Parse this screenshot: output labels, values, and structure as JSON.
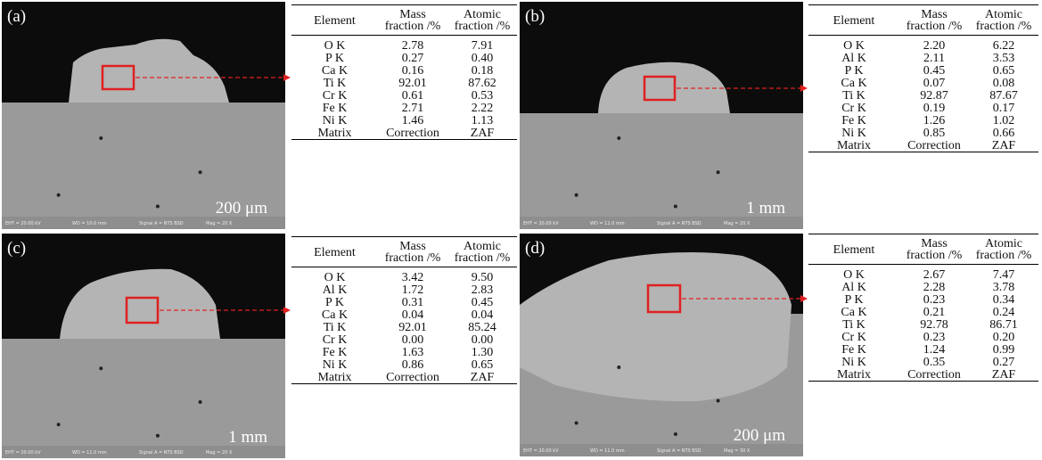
{
  "panels": [
    {
      "label": "(a)",
      "scale": "200 μm",
      "info": [
        "EHT = 20.00 kV",
        "WD = 10.0 mm",
        "Signal A = NTS BSD",
        "Mag = 20 X"
      ],
      "table": {
        "headers": [
          "Element",
          "Mass fraction /%",
          "Atomic fraction /%"
        ],
        "rows": [
          [
            "O K",
            "2.78",
            "7.91"
          ],
          [
            "P K",
            "0.27",
            "0.40"
          ],
          [
            "Ca K",
            "0.16",
            "0.18"
          ],
          [
            "Ti K",
            "92.01",
            "87.62"
          ],
          [
            "Cr K",
            "0.61",
            "0.53"
          ],
          [
            "Fe K",
            "2.71",
            "2.22"
          ],
          [
            "Ni K",
            "1.46",
            "1.13"
          ],
          [
            "Matrix",
            "Correction",
            "ZAF"
          ]
        ]
      }
    },
    {
      "label": "(b)",
      "scale": "1 mm",
      "info": [
        "EHT = 20.00 kV",
        "WD = 12.0 mm",
        "Signal A = NTS BSD",
        "Mag = 20 X"
      ],
      "table": {
        "headers": [
          "Element",
          "Mass fraction /%",
          "Atomic fraction /%"
        ],
        "rows": [
          [
            "O K",
            "2.20",
            "6.22"
          ],
          [
            "Al K",
            "2.11",
            "3.53"
          ],
          [
            "P K",
            "0.45",
            "0.65"
          ],
          [
            "Ca K",
            "0.07",
            "0.08"
          ],
          [
            "Ti K",
            "92.87",
            "87.67"
          ],
          [
            "Cr K",
            "0.19",
            "0.17"
          ],
          [
            "Fe K",
            "1.26",
            "1.02"
          ],
          [
            "Ni K",
            "0.85",
            "0.66"
          ],
          [
            "Matrix",
            "Correction",
            "ZAF"
          ]
        ]
      }
    },
    {
      "label": "(c)",
      "scale": "1 mm",
      "info": [
        "EHT = 20.00 kV",
        "WD = 11.0 mm",
        "Signal A = NTS BSD",
        "Mag = 20 X"
      ],
      "table": {
        "headers": [
          "Element",
          "Mass fraction /%",
          "Atomic fraction /%"
        ],
        "rows": [
          [
            "O K",
            "3.42",
            "9.50"
          ],
          [
            "Al K",
            "1.72",
            "2.83"
          ],
          [
            "P K",
            "0.31",
            "0.45"
          ],
          [
            "Ca K",
            "0.04",
            "0.04"
          ],
          [
            "Ti K",
            "92.01",
            "85.24"
          ],
          [
            "Cr K",
            "0.00",
            "0.00"
          ],
          [
            "Fe K",
            "1.63",
            "1.30"
          ],
          [
            "Ni K",
            "0.86",
            "0.65"
          ],
          [
            "Matrix",
            "Correction",
            "ZAF"
          ]
        ]
      }
    },
    {
      "label": "(d)",
      "scale": "200 μm",
      "info": [
        "EHT = 20.00 kV",
        "WD = 11.0 mm",
        "Signal A = NTS BSD",
        "Mag = 30 X"
      ],
      "table": {
        "headers": [
          "Element",
          "Mass fraction /%",
          "Atomic fraction /%"
        ],
        "rows": [
          [
            "O K",
            "2.67",
            "7.47"
          ],
          [
            "Al K",
            "2.28",
            "3.78"
          ],
          [
            "P K",
            "0.23",
            "0.34"
          ],
          [
            "Ca K",
            "0.21",
            "0.24"
          ],
          [
            "Ti K",
            "92.78",
            "86.71"
          ],
          [
            "Cr K",
            "0.23",
            "0.20"
          ],
          [
            "Fe K",
            "1.24",
            "0.99"
          ],
          [
            "Ni K",
            "0.35",
            "0.27"
          ],
          [
            "Matrix",
            "Correction",
            "ZAF"
          ]
        ]
      }
    }
  ]
}
